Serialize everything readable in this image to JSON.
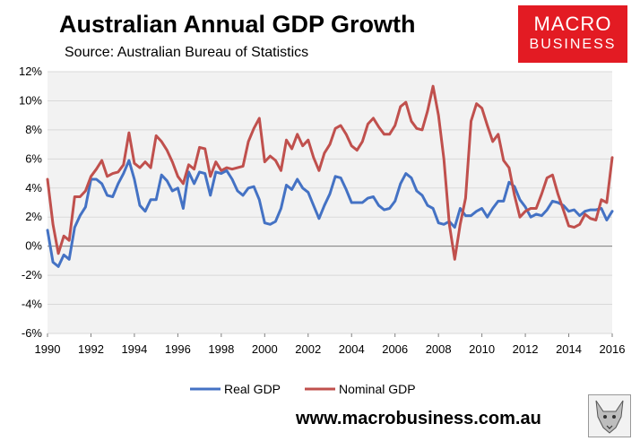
{
  "header": {
    "title": "Australian Annual GDP Growth",
    "subtitle": "Source: Australian Bureau of Statistics"
  },
  "logo": {
    "line1": "MACRO",
    "line2": "BUSINESS"
  },
  "footer": {
    "website": "www.macrobusiness.com.au",
    "mascot_icon": "wolf-icon"
  },
  "colors": {
    "real": "#4472c4",
    "nominal": "#c0504d",
    "plot_bg": "#f2f2f2",
    "grid": "#d9d9d9",
    "logo_bg": "#e31b23"
  },
  "chart_data": {
    "type": "line",
    "title": "Australian Annual GDP Growth",
    "xlabel": "",
    "ylabel": "",
    "xlim": [
      1990,
      2016
    ],
    "ylim": [
      -6,
      12
    ],
    "x_ticks": [
      1990,
      1992,
      1994,
      1996,
      1998,
      2000,
      2002,
      2004,
      2006,
      2008,
      2010,
      2012,
      2014,
      2016
    ],
    "y_ticks": [
      -6,
      -4,
      -2,
      0,
      2,
      4,
      6,
      8,
      10,
      12
    ],
    "y_tick_labels": [
      "-6%",
      "-4%",
      "-2%",
      "0%",
      "2%",
      "4%",
      "6%",
      "8%",
      "10%",
      "12%"
    ],
    "grid": "horizontal",
    "legend_position": "bottom",
    "series": [
      {
        "name": "Real GDP",
        "color": "#4472c4",
        "x": [
          1990.0,
          1990.25,
          1990.5,
          1990.75,
          1991.0,
          1991.25,
          1991.5,
          1991.75,
          1992.0,
          1992.25,
          1992.5,
          1992.75,
          1993.0,
          1993.25,
          1993.5,
          1993.75,
          1994.0,
          1994.25,
          1994.5,
          1994.75,
          1995.0,
          1995.25,
          1995.5,
          1995.75,
          1996.0,
          1996.25,
          1996.5,
          1996.75,
          1997.0,
          1997.25,
          1997.5,
          1997.75,
          1998.0,
          1998.25,
          1998.5,
          1998.75,
          1999.0,
          1999.25,
          1999.5,
          1999.75,
          2000.0,
          2000.25,
          2000.5,
          2000.75,
          2001.0,
          2001.25,
          2001.5,
          2001.75,
          2002.0,
          2002.25,
          2002.5,
          2002.75,
          2003.0,
          2003.25,
          2003.5,
          2003.75,
          2004.0,
          2004.25,
          2004.5,
          2004.75,
          2005.0,
          2005.25,
          2005.5,
          2005.75,
          2006.0,
          2006.25,
          2006.5,
          2006.75,
          2007.0,
          2007.25,
          2007.5,
          2007.75,
          2008.0,
          2008.25,
          2008.5,
          2008.75,
          2009.0,
          2009.25,
          2009.5,
          2009.75,
          2010.0,
          2010.25,
          2010.5,
          2010.75,
          2011.0,
          2011.25,
          2011.5,
          2011.75,
          2012.0,
          2012.25,
          2012.5,
          2012.75,
          2013.0,
          2013.25,
          2013.5,
          2013.75,
          2014.0,
          2014.25,
          2014.5,
          2014.75,
          2015.0,
          2015.25,
          2015.5,
          2015.75,
          2016.0
        ],
        "values": [
          1.1,
          -1.1,
          -1.4,
          -0.6,
          -0.9,
          1.3,
          2.1,
          2.7,
          4.6,
          4.6,
          4.3,
          3.5,
          3.4,
          4.3,
          5.0,
          5.9,
          4.6,
          2.8,
          2.4,
          3.2,
          3.2,
          4.9,
          4.5,
          3.8,
          4.0,
          2.6,
          5.1,
          4.3,
          5.1,
          5.0,
          3.5,
          5.1,
          5.0,
          5.2,
          4.6,
          3.8,
          3.5,
          4.0,
          4.1,
          3.2,
          1.6,
          1.5,
          1.7,
          2.6,
          4.2,
          3.9,
          4.6,
          4.0,
          3.7,
          2.8,
          1.9,
          2.8,
          3.6,
          4.8,
          4.7,
          3.9,
          3.0,
          3.0,
          3.0,
          3.3,
          3.4,
          2.8,
          2.5,
          2.6,
          3.1,
          4.3,
          5.0,
          4.7,
          3.8,
          3.5,
          2.8,
          2.6,
          1.6,
          1.5,
          1.7,
          1.3,
          2.6,
          2.1,
          2.1,
          2.4,
          2.6,
          2.0,
          2.6,
          3.1,
          3.1,
          4.4,
          4.1,
          3.2,
          2.7,
          2.0,
          2.2,
          2.1,
          2.5,
          3.1,
          3.0,
          2.8,
          2.4,
          2.5,
          2.1,
          2.4,
          2.5,
          2.5,
          2.6,
          1.8,
          2.4
        ]
      },
      {
        "name": "Nominal GDP",
        "color": "#c0504d",
        "x": [
          1990.0,
          1990.25,
          1990.5,
          1990.75,
          1991.0,
          1991.25,
          1991.5,
          1991.75,
          1992.0,
          1992.25,
          1992.5,
          1992.75,
          1993.0,
          1993.25,
          1993.5,
          1993.75,
          1994.0,
          1994.25,
          1994.5,
          1994.75,
          1995.0,
          1995.25,
          1995.5,
          1995.75,
          1996.0,
          1996.25,
          1996.5,
          1996.75,
          1997.0,
          1997.25,
          1997.5,
          1997.75,
          1998.0,
          1998.25,
          1998.5,
          1998.75,
          1999.0,
          1999.25,
          1999.5,
          1999.75,
          2000.0,
          2000.25,
          2000.5,
          2000.75,
          2001.0,
          2001.25,
          2001.5,
          2001.75,
          2002.0,
          2002.25,
          2002.5,
          2002.75,
          2003.0,
          2003.25,
          2003.5,
          2003.75,
          2004.0,
          2004.25,
          2004.5,
          2004.75,
          2005.0,
          2005.25,
          2005.5,
          2005.75,
          2006.0,
          2006.25,
          2006.5,
          2006.75,
          2007.0,
          2007.25,
          2007.5,
          2007.75,
          2008.0,
          2008.25,
          2008.5,
          2008.75,
          2009.0,
          2009.25,
          2009.5,
          2009.75,
          2010.0,
          2010.25,
          2010.5,
          2010.75,
          2011.0,
          2011.25,
          2011.5,
          2011.75,
          2012.0,
          2012.25,
          2012.5,
          2012.75,
          2013.0,
          2013.25,
          2013.5,
          2013.75,
          2014.0,
          2014.25,
          2014.5,
          2014.75,
          2015.0,
          2015.25,
          2015.5,
          2015.75,
          2016.0
        ],
        "values": [
          4.6,
          1.5,
          -0.5,
          0.7,
          0.4,
          3.4,
          3.4,
          3.8,
          4.8,
          5.3,
          5.9,
          4.8,
          5.0,
          5.1,
          5.6,
          7.8,
          5.7,
          5.4,
          5.8,
          5.4,
          7.6,
          7.2,
          6.6,
          5.8,
          4.8,
          4.3,
          5.6,
          5.3,
          6.8,
          6.7,
          4.8,
          5.8,
          5.2,
          5.4,
          5.3,
          5.4,
          5.5,
          7.2,
          8.1,
          8.8,
          5.8,
          6.2,
          5.9,
          5.2,
          7.3,
          6.7,
          7.7,
          6.9,
          7.3,
          6.1,
          5.2,
          6.4,
          7.0,
          8.1,
          8.3,
          7.7,
          6.9,
          6.6,
          7.2,
          8.4,
          8.8,
          8.2,
          7.7,
          7.7,
          8.3,
          9.6,
          9.9,
          8.6,
          8.1,
          8.0,
          9.3,
          11.0,
          9.0,
          6.0,
          1.5,
          -0.9,
          1.5,
          3.3,
          8.6,
          9.8,
          9.5,
          8.3,
          7.2,
          7.7,
          5.9,
          5.4,
          3.5,
          2.0,
          2.4,
          2.6,
          2.6,
          3.6,
          4.7,
          4.9,
          3.6,
          2.5,
          1.4,
          1.3,
          1.5,
          2.2,
          1.9,
          1.8,
          3.2,
          3.0,
          6.1
        ]
      }
    ]
  }
}
